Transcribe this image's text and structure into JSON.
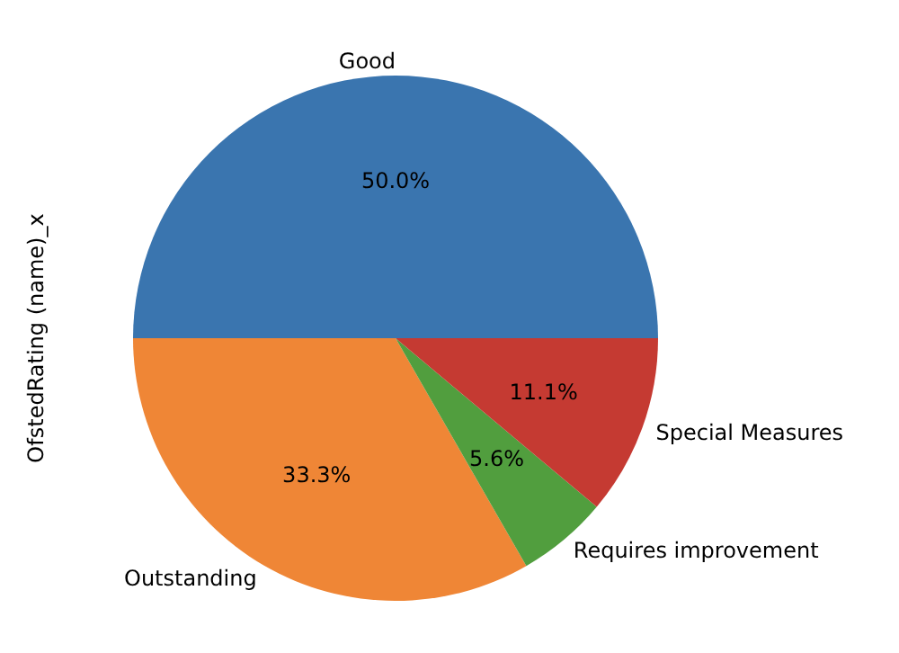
{
  "chart_data": {
    "type": "pie",
    "ylabel": "OfstedRating (name)_x",
    "categories": [
      "Good",
      "Outstanding",
      "Requires improvement",
      "Special Measures"
    ],
    "values": [
      50.0,
      33.3,
      5.6,
      11.1
    ],
    "colors": [
      "#3a75af",
      "#ef8636",
      "#519e3e",
      "#c53a32"
    ],
    "value_labels": [
      "50.0%",
      "33.3%",
      "5.6%",
      "11.1%"
    ],
    "legend": false
  }
}
